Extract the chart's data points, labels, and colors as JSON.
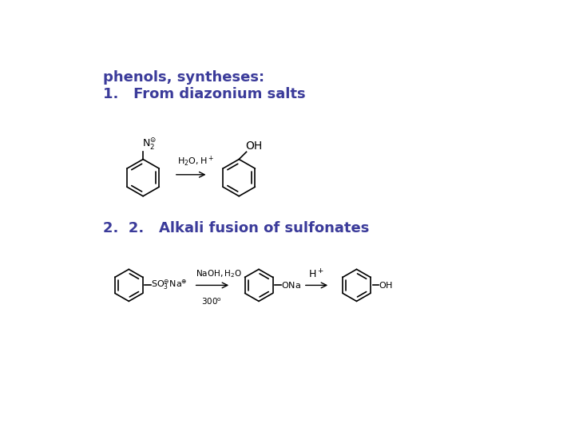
{
  "background_color": "#ffffff",
  "text_color_blue": "#3b3b9a",
  "text_color_black": "#000000",
  "title": "phenols, syntheses:",
  "subtitle1": "1.   From diazonium salts",
  "subtitle2": "2.  2.   Alkali fusion of sulfonates",
  "title_fontsize": 13,
  "subtitle_fontsize": 13,
  "fig_width": 7.2,
  "fig_height": 5.4,
  "dpi": 100
}
